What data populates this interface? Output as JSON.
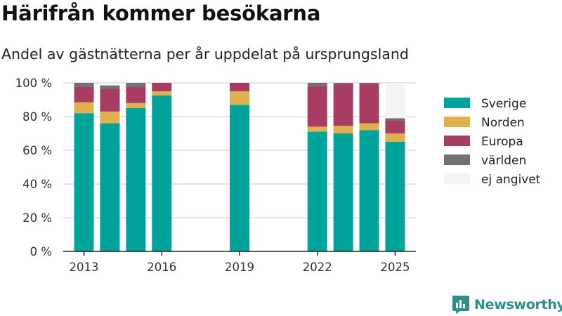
{
  "header": {
    "title": "Härifrån kommer besökarna",
    "subtitle": "Andel av gästnätterna per år uppdelat på ursprungsland"
  },
  "branding": {
    "logo_text": "Newsworthy",
    "logo_icon": "bar-chart-logo-icon",
    "color": "#2b8f8a"
  },
  "chart_data": {
    "type": "bar",
    "stacked": true,
    "x": [
      2013,
      2014,
      2015,
      2016,
      2019,
      2022,
      2023,
      2024,
      2025
    ],
    "x_ticks": [
      2013,
      2016,
      2019,
      2022,
      2025
    ],
    "xlim": [
      2012.2,
      2025.8
    ],
    "y_ticks": [
      0,
      20,
      40,
      60,
      80,
      100
    ],
    "y_tick_labels": [
      "0 %",
      "20 %",
      "40 %",
      "60 %",
      "80 %",
      "100 %"
    ],
    "ylim": [
      0,
      100
    ],
    "grid": true,
    "legend_position": "right",
    "series": [
      {
        "name": "Sverige",
        "color": "#00a39a",
        "values": [
          82,
          76,
          85,
          92.5,
          87,
          71,
          70,
          72,
          65
        ]
      },
      {
        "name": "Norden",
        "color": "#e0b04e",
        "values": [
          6.5,
          7,
          3,
          2.5,
          8,
          3,
          4.5,
          4,
          5
        ]
      },
      {
        "name": "Europa",
        "color": "#a83c62",
        "values": [
          9,
          13.5,
          9.5,
          5,
          5,
          24,
          25,
          23.5,
          7.5
        ]
      },
      {
        "name": "världen",
        "color": "#707075",
        "values": [
          2.5,
          2,
          2.5,
          0,
          0,
          2,
          0.5,
          0.5,
          1.5
        ]
      },
      {
        "name": "ej angivet",
        "color": "#f4f4f4",
        "values": [
          0,
          0,
          0,
          0,
          0,
          0,
          0,
          0,
          21
        ]
      }
    ]
  }
}
